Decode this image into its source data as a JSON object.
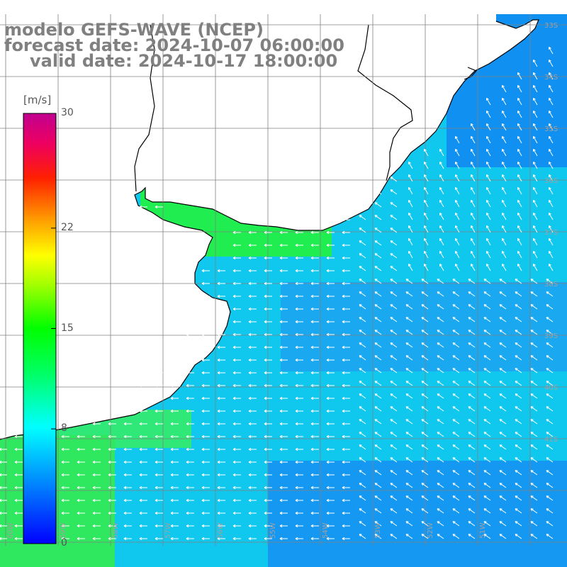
{
  "title": {
    "line1": "modelo GEFS-WAVE (NCEP)",
    "line2": "forecast date: 2024-10-07 06:00:00",
    "line3": "valid date: 2024-10-17 18:00:00"
  },
  "colorbar": {
    "units": "[m/s]",
    "ticks": [
      "30",
      "22",
      "15",
      "8",
      "0"
    ],
    "tick_values": [
      30,
      22,
      15,
      8,
      0
    ],
    "range": [
      0,
      30
    ],
    "colors": [
      "#0000ff",
      "#0096ff",
      "#00ffff",
      "#00ff64",
      "#00ff00",
      "#96ff00",
      "#ffff00",
      "#ffa000",
      "#ff3200",
      "#ff0000",
      "#e6006e",
      "#c80096"
    ]
  },
  "map": {
    "lat_labels": [
      "33S",
      "34S",
      "35S",
      "36S",
      "37S",
      "38S",
      "39S",
      "40S",
      "41S"
    ],
    "lon_labels": [
      "60W",
      "59W",
      "58W",
      "57W",
      "56W",
      "55W",
      "54W",
      "53W",
      "52W",
      "51W"
    ],
    "wind_direction": "from east-southeast offshore, turning southerly toward the northeast",
    "typical_speed_ms": 8
  },
  "colors": {
    "land": "#ffffff",
    "coast": "#000000",
    "grid": "#808080",
    "title": "#808080"
  }
}
